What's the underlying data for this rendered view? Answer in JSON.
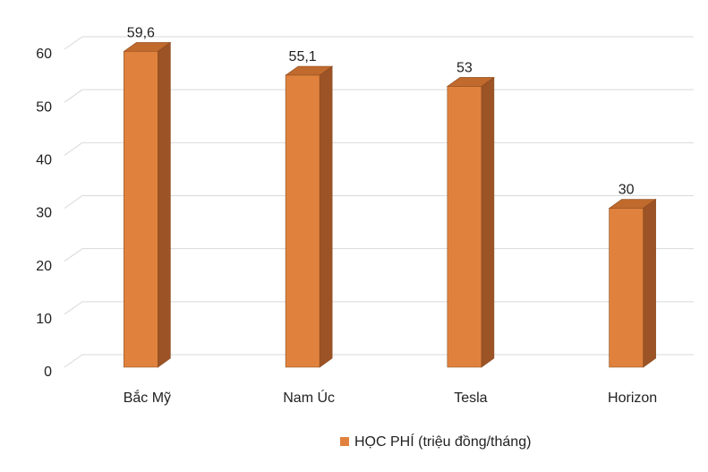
{
  "chart_data": {
    "type": "bar3d",
    "categories": [
      "Bắc Mỹ",
      "Nam Úc",
      "Tesla",
      "Horizon"
    ],
    "series": [
      {
        "name": "HỌC PHÍ (triệu đồng/tháng)",
        "color": "#e0823d",
        "values": [
          59.6,
          55.1,
          53,
          30
        ],
        "value_labels": [
          "59,6",
          "55,1",
          "53",
          "30"
        ]
      }
    ],
    "ylim": [
      0,
      60
    ],
    "yticks": [
      0,
      10,
      20,
      30,
      40,
      50,
      60
    ],
    "grid": true,
    "legend": "bottom"
  }
}
